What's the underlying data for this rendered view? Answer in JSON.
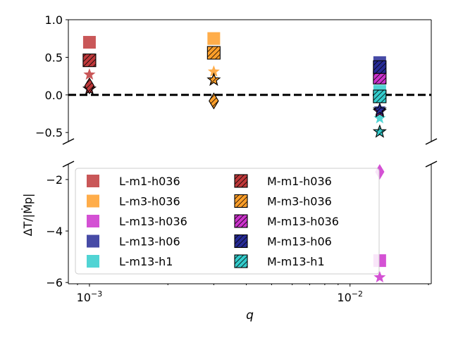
{
  "chart_data": {
    "type": "scatter",
    "xlabel": "q",
    "ylabel": "ΔT/|Ṁp|",
    "xscale": "log",
    "xlim": [
      0.00083,
      0.0205
    ],
    "x_tick_labels": [
      {
        "value": 0.001,
        "base": "10",
        "exp": "−3"
      },
      {
        "value": 0.01,
        "base": "10",
        "exp": "−2"
      }
    ],
    "axes_broken": true,
    "upper_panel": {
      "ylim": [
        -0.62,
        1.0
      ],
      "yticks": [
        1.0,
        0.5,
        0.0,
        -0.5
      ],
      "ytick_labels": [
        "1.0",
        "0.5",
        "0.0",
        "−0.5"
      ],
      "reference_line": {
        "y": 0.0,
        "style": "dashed",
        "color": "#000000"
      }
    },
    "lower_panel": {
      "ylim": [
        -6.05,
        -1.4
      ],
      "yticks": [
        -2,
        -4,
        -6
      ],
      "ytick_labels": [
        "−2",
        "−4",
        "−6"
      ]
    },
    "marker_legend": "square = torque; star and diamond = torque components (unlabeled)",
    "series": [
      {
        "name": "L-m1-h036",
        "color": "#c0393b",
        "hatched": false,
        "points": [
          {
            "x": 0.001,
            "y": 0.7,
            "marker": "square"
          },
          {
            "x": 0.001,
            "y": 0.27,
            "marker": "star"
          }
        ]
      },
      {
        "name": "L-m3-h036",
        "color": "#ff9f2a",
        "hatched": false,
        "points": [
          {
            "x": 0.003,
            "y": 0.75,
            "marker": "square"
          },
          {
            "x": 0.003,
            "y": 0.31,
            "marker": "star"
          }
        ]
      },
      {
        "name": "L-m13-h036",
        "color": "#cc33cc",
        "hatched": false,
        "points": [
          {
            "x": 0.013,
            "y": -5.15,
            "marker": "square"
          },
          {
            "x": 0.013,
            "y": -5.8,
            "marker": "star"
          },
          {
            "x": 0.013,
            "y": -1.7,
            "marker": "diamond"
          }
        ]
      },
      {
        "name": "L-m13-h06",
        "color": "#272b96",
        "hatched": false,
        "points": [
          {
            "x": 0.013,
            "y": 0.43,
            "marker": "square"
          },
          {
            "x": 0.013,
            "y": -0.18,
            "marker": "star"
          }
        ]
      },
      {
        "name": "L-m13-h1",
        "color": "#33cccc",
        "hatched": false,
        "points": [
          {
            "x": 0.013,
            "y": 0.05,
            "marker": "square"
          },
          {
            "x": 0.013,
            "y": -0.31,
            "marker": "star"
          }
        ]
      },
      {
        "name": "M-m1-h036",
        "color": "#c0393b",
        "hatched": true,
        "points": [
          {
            "x": 0.001,
            "y": 0.46,
            "marker": "square"
          },
          {
            "x": 0.001,
            "y": 0.08,
            "marker": "star"
          },
          {
            "x": 0.001,
            "y": 0.12,
            "marker": "diamond"
          }
        ]
      },
      {
        "name": "M-m3-h036",
        "color": "#ff9f2a",
        "hatched": true,
        "points": [
          {
            "x": 0.003,
            "y": 0.56,
            "marker": "square"
          },
          {
            "x": 0.003,
            "y": 0.2,
            "marker": "star"
          },
          {
            "x": 0.003,
            "y": -0.08,
            "marker": "diamond"
          }
        ]
      },
      {
        "name": "M-m13-h036",
        "color": "#cc33cc",
        "hatched": true,
        "points": [
          {
            "x": 0.013,
            "y": 0.23,
            "marker": "square"
          },
          {
            "x": 0.013,
            "y": -0.22,
            "marker": "star"
          }
        ]
      },
      {
        "name": "M-m13-h06",
        "color": "#272b96",
        "hatched": true,
        "points": [
          {
            "x": 0.013,
            "y": 0.37,
            "marker": "square"
          },
          {
            "x": 0.013,
            "y": -0.2,
            "marker": "star"
          }
        ]
      },
      {
        "name": "M-m13-h1",
        "color": "#33cccc",
        "hatched": true,
        "points": [
          {
            "x": 0.013,
            "y": -0.02,
            "marker": "square"
          },
          {
            "x": 0.013,
            "y": -0.49,
            "marker": "star"
          }
        ]
      }
    ],
    "legend": {
      "placement": "lower-left of lower panel",
      "columns": 2,
      "column_1": [
        "L-m1-h036",
        "L-m3-h036",
        "L-m13-h036",
        "L-m13-h06",
        "L-m13-h1"
      ],
      "column_2": [
        "M-m1-h036",
        "M-m3-h036",
        "M-m13-h036",
        "M-m13-h06",
        "M-m13-h1"
      ]
    },
    "grid": false
  }
}
